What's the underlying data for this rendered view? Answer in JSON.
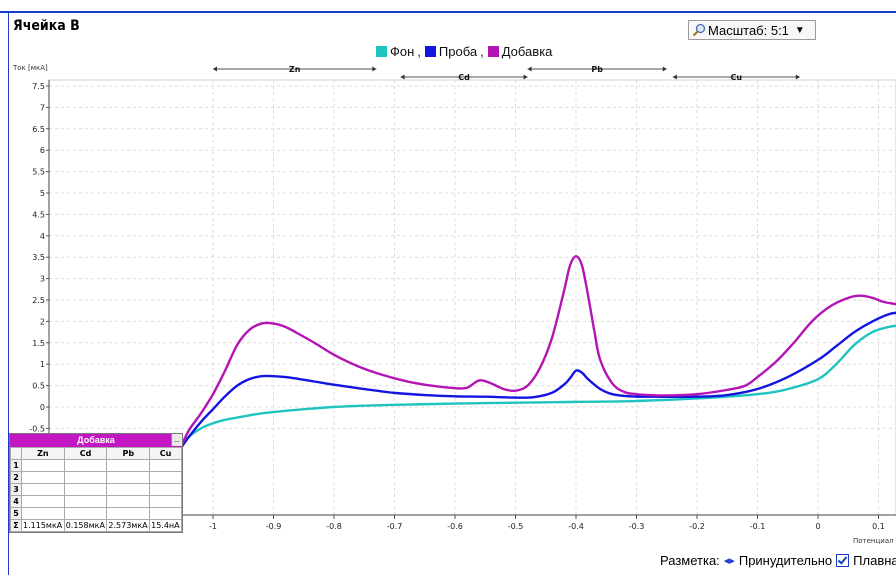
{
  "window": {
    "title": "Ячейка В"
  },
  "toolbar": {
    "scale_label": "Масштаб: 5:1"
  },
  "footer": {
    "markup_label": "Разметка:",
    "forced_label": "Принудительно",
    "smooth_label": "Плавная"
  },
  "result_panel": {
    "title": "Добавка",
    "columns": [
      "Zn",
      "Cd",
      "Pb",
      "Cu"
    ],
    "row_numbers": [
      "1",
      "2",
      "3",
      "4",
      "5"
    ],
    "sum_symbol": "Σ",
    "sum_values": [
      "1.115мкА",
      "0.158мкА",
      "2.573мкА",
      "15.4нА"
    ]
  },
  "chart_data": {
    "type": "line",
    "ylabel": "Ток [мкА]",
    "xlabel": "Потенциал [",
    "xlim": [
      -1.5,
      0.14
    ],
    "ylim": [
      -1.0,
      7.6
    ],
    "xticks": [
      "-1",
      "-0.9",
      "-0.8",
      "-0.7",
      "-0.6",
      "-0.5",
      "-0.4",
      "-0.3",
      "-0.2",
      "-0.1",
      "0",
      "0.1"
    ],
    "yticks": [
      "-0.5",
      "0",
      "0.5",
      "1",
      "1.5",
      "2",
      "2.5",
      "3",
      "3.5",
      "4",
      "4.5",
      "5",
      "5.5",
      "6",
      "6.5",
      "7",
      "7.5"
    ],
    "legend": [
      {
        "name": "Фон",
        "color": "#1fc4c0"
      },
      {
        "name": "Проба",
        "color": "#1414e0"
      },
      {
        "name": "Добавка",
        "color": "#b414b4"
      }
    ],
    "element_ranges": [
      {
        "label": "Zn",
        "range": [
          -1.0,
          -0.73
        ]
      },
      {
        "label": "Cd",
        "range": [
          -0.69,
          -0.48
        ]
      },
      {
        "label": "Pb",
        "range": [
          -0.48,
          -0.25
        ]
      },
      {
        "label": "Cu",
        "range": [
          -0.24,
          -0.03
        ]
      }
    ],
    "series": [
      {
        "name": "Фон",
        "color": "#1fc4c0",
        "x": [
          -1.055,
          -1.04,
          -1.02,
          -1.0,
          -0.98,
          -0.95,
          -0.92,
          -0.88,
          -0.84,
          -0.8,
          -0.75,
          -0.7,
          -0.6,
          -0.5,
          -0.4,
          -0.3,
          -0.2,
          -0.1,
          -0.05,
          0.0,
          0.03,
          0.06,
          0.09,
          0.12,
          0.14
        ],
        "y": [
          -1.0,
          -0.7,
          -0.5,
          -0.38,
          -0.3,
          -0.22,
          -0.15,
          -0.09,
          -0.04,
          0.0,
          0.03,
          0.05,
          0.08,
          0.1,
          0.12,
          0.14,
          0.2,
          0.3,
          0.42,
          0.65,
          1.0,
          1.45,
          1.75,
          1.88,
          1.9
        ]
      },
      {
        "name": "Проба",
        "color": "#1414e0",
        "x": [
          -1.055,
          -1.04,
          -1.02,
          -1.0,
          -0.98,
          -0.96,
          -0.94,
          -0.92,
          -0.9,
          -0.88,
          -0.86,
          -0.83,
          -0.8,
          -0.75,
          -0.7,
          -0.65,
          -0.6,
          -0.55,
          -0.5,
          -0.47,
          -0.44,
          -0.42,
          -0.41,
          -0.4,
          -0.39,
          -0.38,
          -0.36,
          -0.34,
          -0.31,
          -0.27,
          -0.2,
          -0.15,
          -0.1,
          -0.05,
          0.0,
          0.03,
          0.06,
          0.09,
          0.12,
          0.14
        ],
        "y": [
          -1.0,
          -0.7,
          -0.35,
          -0.05,
          0.25,
          0.5,
          0.65,
          0.72,
          0.72,
          0.7,
          0.66,
          0.59,
          0.52,
          0.42,
          0.33,
          0.28,
          0.25,
          0.24,
          0.22,
          0.23,
          0.33,
          0.52,
          0.67,
          0.85,
          0.8,
          0.65,
          0.42,
          0.3,
          0.25,
          0.24,
          0.24,
          0.28,
          0.42,
          0.7,
          1.1,
          1.42,
          1.75,
          2.0,
          2.18,
          2.2
        ]
      },
      {
        "name": "Добавка",
        "color": "#b414b4",
        "x": [
          -1.055,
          -1.04,
          -1.02,
          -1.0,
          -0.98,
          -0.96,
          -0.94,
          -0.92,
          -0.9,
          -0.88,
          -0.86,
          -0.83,
          -0.8,
          -0.76,
          -0.72,
          -0.68,
          -0.64,
          -0.6,
          -0.58,
          -0.56,
          -0.54,
          -0.52,
          -0.5,
          -0.48,
          -0.46,
          -0.44,
          -0.42,
          -0.41,
          -0.4,
          -0.39,
          -0.38,
          -0.37,
          -0.36,
          -0.34,
          -0.32,
          -0.3,
          -0.28,
          -0.25,
          -0.2,
          -0.15,
          -0.12,
          -0.1,
          -0.07,
          -0.04,
          -0.01,
          0.02,
          0.05,
          0.07,
          0.09,
          0.11,
          0.14
        ],
        "y": [
          -1.0,
          -0.55,
          -0.15,
          0.3,
          0.85,
          1.45,
          1.8,
          1.95,
          1.95,
          1.87,
          1.72,
          1.48,
          1.22,
          0.95,
          0.75,
          0.6,
          0.5,
          0.44,
          0.45,
          0.62,
          0.55,
          0.42,
          0.38,
          0.5,
          0.9,
          1.6,
          2.7,
          3.3,
          3.52,
          3.3,
          2.6,
          1.8,
          1.1,
          0.55,
          0.35,
          0.3,
          0.28,
          0.27,
          0.3,
          0.4,
          0.5,
          0.7,
          1.05,
          1.5,
          2.0,
          2.35,
          2.55,
          2.6,
          2.55,
          2.45,
          2.38
        ]
      }
    ]
  }
}
